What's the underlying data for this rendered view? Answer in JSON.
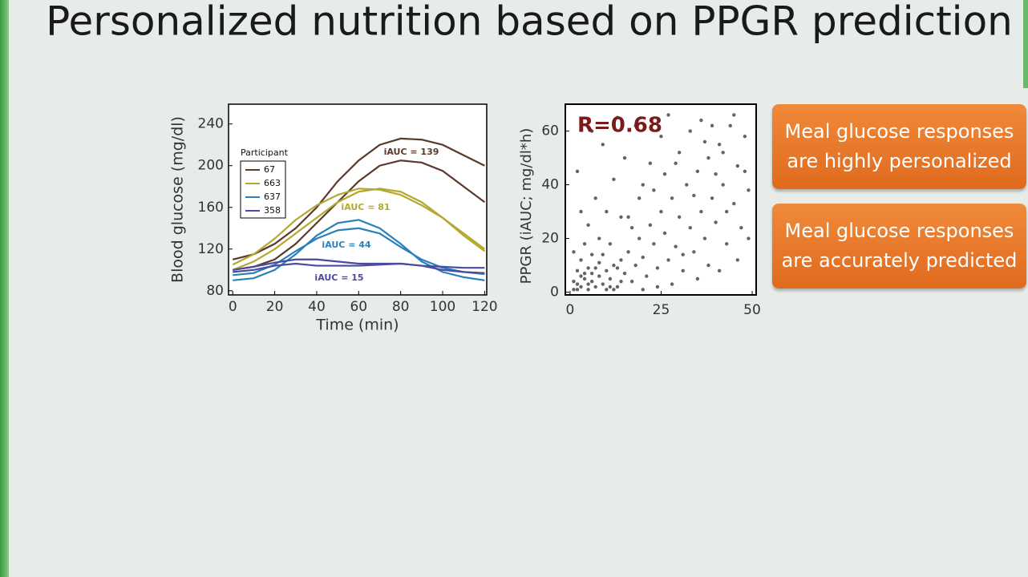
{
  "title": "Personalized nutrition based on PPGR prediction",
  "callouts": [
    "Meal glucose responses are highly personalized",
    "Meal glucose responses are accurately predicted"
  ],
  "chart_data": [
    {
      "type": "line",
      "x_label": "Time (min)",
      "y_label": "Blood glucose (mg/dl)",
      "legend_title": "Participant",
      "x": [
        0,
        10,
        20,
        30,
        40,
        50,
        60,
        70,
        80,
        90,
        100,
        110,
        120
      ],
      "xlim": [
        -2,
        121
      ],
      "xticks": [
        0,
        20,
        40,
        60,
        80,
        100,
        120
      ],
      "ylim": [
        76,
        259
      ],
      "yticks": [
        80,
        120,
        160,
        200,
        240
      ],
      "series": [
        {
          "name": "67",
          "color": "#5a3a2a",
          "values": [
            [
              110,
              115,
              125,
              140,
              160,
              185,
              205,
              220,
              226,
              225,
              220,
              210,
              200
            ],
            [
              100,
              103,
              110,
              125,
              145,
              165,
              185,
              200,
              205,
              203,
              195,
              180,
              165
            ]
          ]
        },
        {
          "name": "663",
          "color": "#b5a830",
          "values": [
            [
              105,
              115,
              130,
              148,
              162,
              172,
              178,
              177,
              172,
              162,
              150,
              135,
              120
            ],
            [
              100,
              108,
              120,
              135,
              150,
              165,
              175,
              178,
              175,
              165,
              150,
              133,
              118
            ]
          ]
        },
        {
          "name": "637",
          "color": "#2a80b8",
          "values": [
            [
              90,
              92,
              100,
              115,
              133,
              145,
              148,
              140,
              125,
              108,
              98,
              93,
              90
            ],
            [
              95,
              97,
              105,
              118,
              130,
              138,
              140,
              135,
              122,
              110,
              102,
              98,
              96
            ]
          ]
        },
        {
          "name": "358",
          "color": "#4a4aa0",
          "values": [
            [
              100,
              103,
              107,
              110,
              110,
              108,
              106,
              106,
              106,
              104,
              100,
              98,
              97
            ],
            [
              98,
              100,
              104,
              106,
              104,
              104,
              104,
              105,
              106,
              104,
              103,
              102,
              102
            ]
          ]
        }
      ],
      "annotations": [
        "iAUC = 139",
        "iAUC = 81",
        "iAUC = 44",
        "iAUC = 15"
      ]
    },
    {
      "type": "scatter",
      "y_label": "PPGR  (iAUC; mg/dl*h)",
      "annotation": "R=0.68",
      "color": "#222222",
      "xlim": [
        -1.3,
        51.1
      ],
      "xticks": [
        0,
        25,
        50
      ],
      "ylim": [
        -1,
        70
      ],
      "yticks": [
        0,
        20,
        40,
        60
      ],
      "x": [
        1,
        2,
        3,
        4,
        5,
        6,
        7,
        8,
        2,
        3,
        5,
        9,
        10,
        11,
        12,
        6,
        4,
        8,
        13,
        14,
        15,
        16,
        17,
        18,
        19,
        20,
        21,
        22,
        23,
        24,
        25,
        26,
        27,
        28,
        29,
        30,
        31,
        32,
        33,
        34,
        35,
        36,
        37,
        38,
        39,
        40,
        41,
        42,
        43,
        44,
        45,
        46,
        47,
        48,
        49,
        10,
        12,
        7,
        15,
        18,
        20,
        5,
        9,
        14,
        22,
        25,
        27,
        30,
        33,
        36,
        40,
        43,
        46,
        38,
        35,
        28,
        24,
        20,
        16,
        11,
        3,
        1,
        2,
        6,
        13,
        19,
        26,
        31,
        34,
        37,
        42,
        45,
        48,
        49,
        41,
        39,
        29,
        23,
        17,
        12,
        8,
        4,
        1,
        3,
        7,
        9,
        11,
        5,
        2,
        6,
        10,
        14,
        13
      ],
      "values": [
        1,
        3,
        2,
        5,
        1,
        4,
        2,
        6,
        8,
        12,
        9,
        3,
        8,
        5,
        10,
        14,
        18,
        20,
        2,
        12,
        7,
        15,
        4,
        10,
        20,
        13,
        6,
        25,
        18,
        9,
        30,
        22,
        12,
        35,
        17,
        28,
        8,
        40,
        24,
        15,
        45,
        30,
        20,
        50,
        35,
        26,
        55,
        40,
        18,
        62,
        33,
        47,
        24,
        58,
        38,
        30,
        42,
        35,
        50,
        62,
        40,
        25,
        55,
        28,
        48,
        58,
        66,
        52,
        60,
        64,
        44,
        30,
        12,
        10,
        5,
        3,
        2,
        1,
        28,
        18,
        30,
        15,
        45,
        60,
        65,
        35,
        44,
        14,
        36,
        56,
        52,
        66,
        45,
        20,
        8,
        62,
        48,
        38,
        24,
        1,
        11,
        7,
        4,
        6,
        9,
        14,
        2,
        3,
        1,
        7,
        1,
        4,
        9
      ]
    }
  ]
}
